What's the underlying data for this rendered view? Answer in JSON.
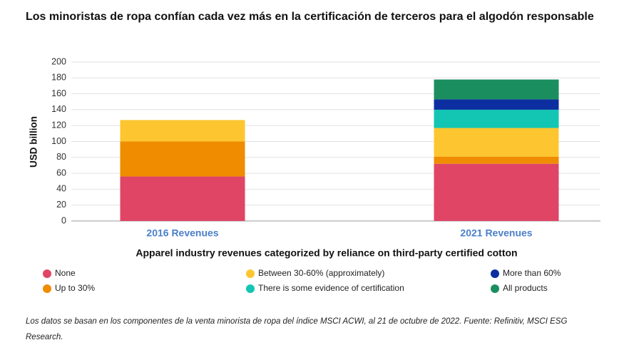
{
  "chart_data": {
    "type": "stacked_bar",
    "title": "Los minoristas de ropa confían cada vez más en la certificación de terceros para el algodón responsable",
    "y_label": "USD billion",
    "x_label": "Apparel industry revenues categorized by reliance on third-party certified cotton",
    "categories": [
      "2016 Revenues",
      "2021 Revenues"
    ],
    "series": [
      {
        "name": "None",
        "color": "#e04565",
        "values": [
          56,
          72
        ]
      },
      {
        "name": "Up to 30%",
        "color": "#ef8c00",
        "values": [
          44,
          9
        ]
      },
      {
        "name": "Between 30-60% (approximately)",
        "color": "#fdc630",
        "values": [
          27,
          36
        ]
      },
      {
        "name": "There is some evidence of certification",
        "color": "#13c6b3",
        "values": [
          0,
          23
        ]
      },
      {
        "name": "More than 60%",
        "color": "#0d2ea0",
        "values": [
          0,
          13
        ]
      },
      {
        "name": "All products",
        "color": "#1b8e5f",
        "values": [
          0,
          25
        ]
      }
    ],
    "ylim": [
      0,
      200
    ],
    "yticks": [
      0,
      20,
      40,
      60,
      80,
      100,
      120,
      140,
      160,
      180,
      200
    ],
    "grid": true,
    "footnote": "Los datos se basan en los componentes de la venta minorista de ropa del índice MSCI ACWI, al 21 de octubre de 2022. Fuente: Refinitiv, MSCI ESG Research."
  }
}
